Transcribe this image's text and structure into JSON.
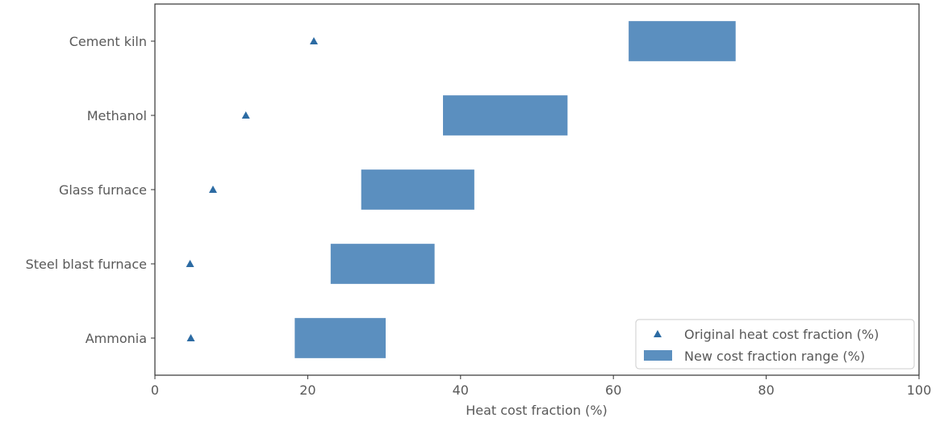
{
  "chart_data": {
    "type": "bar",
    "orientation": "horizontal",
    "title": "",
    "xlabel": "Heat cost fraction (%)",
    "ylabel": "",
    "xlim": [
      0,
      100
    ],
    "xticks": [
      0,
      20,
      40,
      60,
      80,
      100
    ],
    "xtick_labels": [
      "0",
      "20",
      "40",
      "60",
      "80",
      "100"
    ],
    "grid": false,
    "legend_position": "bottom-right",
    "categories": [
      "Cement kiln",
      "Methanol",
      "Glass furnace",
      "Steel blast furnace",
      "Ammonia"
    ],
    "series": [
      {
        "name": "Original heat cost fraction (%)",
        "kind": "scatter",
        "marker": "triangle",
        "color": "#2c6ba3",
        "values": [
          20.8,
          11.9,
          7.6,
          4.6,
          4.7
        ]
      },
      {
        "name": "New cost fraction range (%)",
        "kind": "range-bar",
        "color": "#5b8fbf",
        "ranges": [
          [
            62,
            76
          ],
          [
            37.7,
            54
          ],
          [
            27,
            41.8
          ],
          [
            23,
            36.6
          ],
          [
            18.3,
            30.2
          ]
        ]
      }
    ]
  }
}
